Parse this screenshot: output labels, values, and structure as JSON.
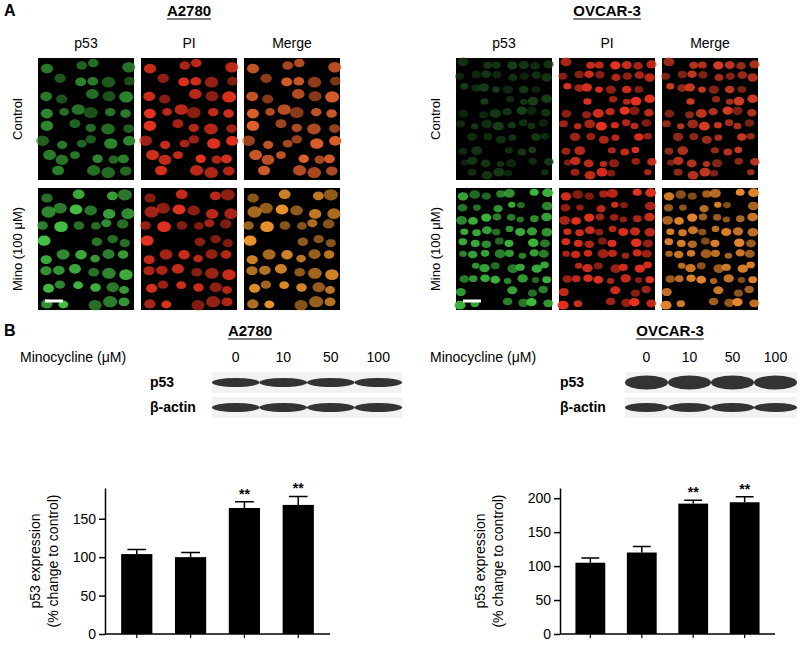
{
  "figure": {
    "panel_a": {
      "label": "A",
      "cell_lines": [
        "A2780",
        "OVCAR-3"
      ],
      "columns": [
        "p53",
        "PI",
        "Merge"
      ],
      "rows": [
        "Control",
        "Mino (100 μM)"
      ]
    },
    "panel_b": {
      "label": "B",
      "blots": [
        {
          "title": "A2780",
          "header": "Minocycline (μM)",
          "doses": [
            0,
            10,
            50,
            100
          ],
          "bands": [
            "p53",
            "β-actin"
          ]
        },
        {
          "title": "OVCAR-3",
          "header": "Minocycline (μM)",
          "doses": [
            0,
            10,
            50,
            100
          ],
          "bands": [
            "p53",
            "β-actin"
          ]
        }
      ]
    }
  },
  "chart_data": [
    {
      "type": "bar",
      "categories": [
        null,
        null,
        null,
        null
      ],
      "values": [
        104,
        100,
        164,
        168
      ],
      "errors": [
        6,
        6,
        8,
        11
      ],
      "significance": [
        null,
        null,
        "**",
        "**"
      ],
      "color": "#000000",
      "ylim": [
        0,
        190
      ],
      "yticks": [
        0,
        50,
        100,
        150
      ],
      "y_label": [
        "p53 expression",
        "(% change to control)"
      ],
      "tick_labels": "y"
    },
    {
      "type": "bar",
      "categories": [
        null,
        null,
        null,
        null
      ],
      "values": [
        105,
        120,
        192,
        194
      ],
      "errors": [
        7,
        9,
        5,
        8
      ],
      "significance": [
        null,
        null,
        "**",
        "**"
      ],
      "color": "#000000",
      "ylim": [
        0,
        215
      ],
      "yticks": [
        0,
        50,
        100,
        150,
        200
      ],
      "y_label": [
        "p53 expression",
        "(% change to control)"
      ],
      "tick_labels": "y"
    }
  ]
}
